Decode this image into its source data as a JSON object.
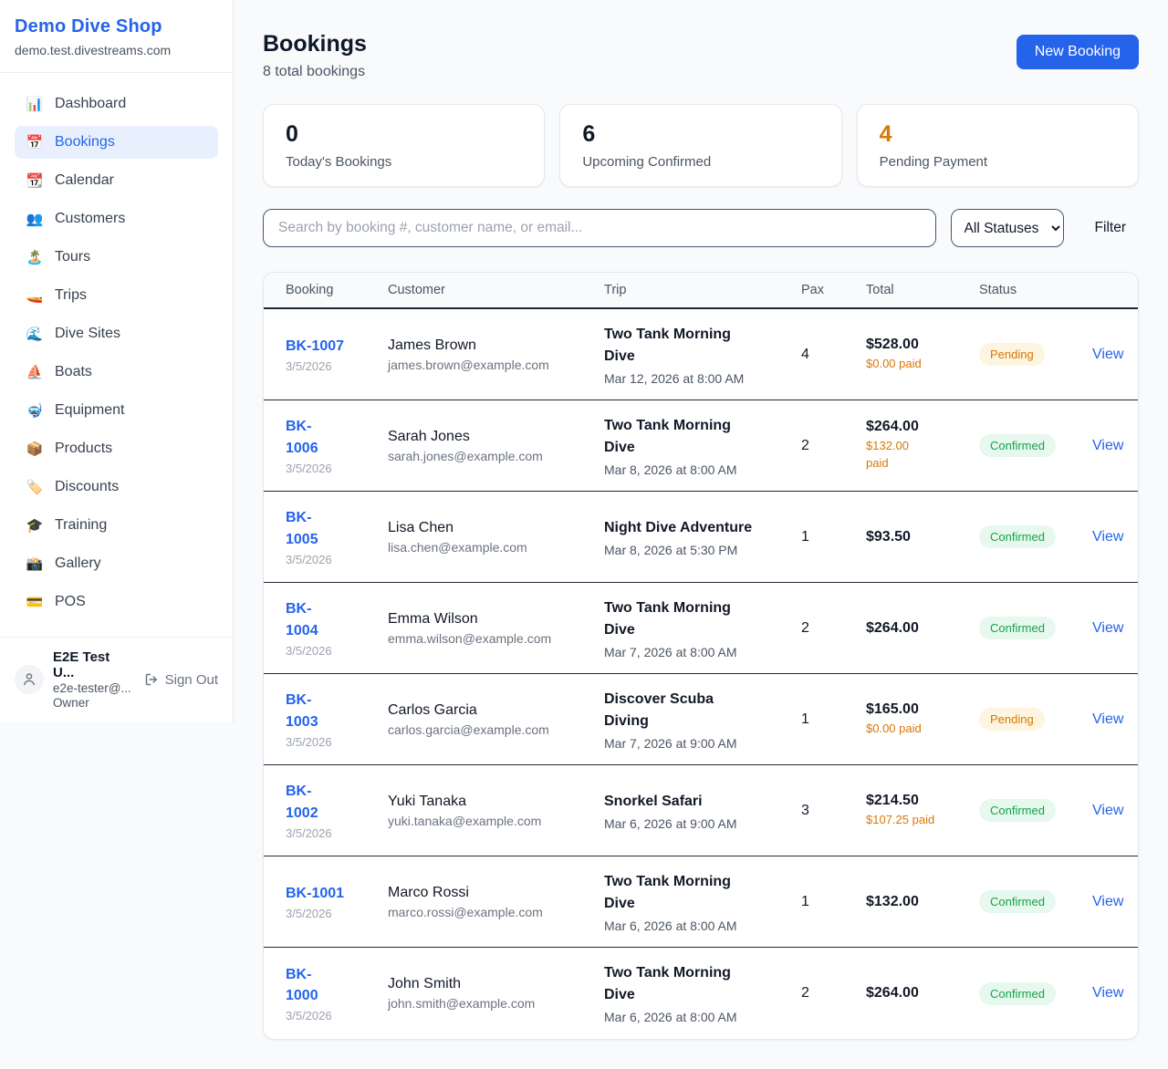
{
  "colors": {
    "accent_blue": "#2563eb",
    "stat_orange": "#d97706",
    "status": {
      "Pending": {
        "bg": "#fdf5e0",
        "text": "#d97706"
      },
      "Confirmed": {
        "bg": "#e7f8ee",
        "text": "#16a34a"
      }
    }
  },
  "sidebar": {
    "shop_name": "Demo Dive Shop",
    "shop_domain": "demo.test.divestreams.com",
    "items": [
      {
        "label": "Dashboard",
        "icon": "📊",
        "icon_name": "bar-chart-icon",
        "active": false
      },
      {
        "label": "Bookings",
        "icon": "📅",
        "icon_name": "calendar-icon",
        "active": true
      },
      {
        "label": "Calendar",
        "icon": "📆",
        "icon_name": "tear-off-calendar-icon",
        "active": false
      },
      {
        "label": "Customers",
        "icon": "👥",
        "icon_name": "people-icon",
        "active": false
      },
      {
        "label": "Tours",
        "icon": "🏝️",
        "icon_name": "island-icon",
        "active": false
      },
      {
        "label": "Trips",
        "icon": "🚤",
        "icon_name": "speedboat-icon",
        "active": false
      },
      {
        "label": "Dive Sites",
        "icon": "🌊",
        "icon_name": "wave-icon",
        "active": false
      },
      {
        "label": "Boats",
        "icon": "⛵",
        "icon_name": "sailboat-icon",
        "active": false
      },
      {
        "label": "Equipment",
        "icon": "🤿",
        "icon_name": "diving-mask-icon",
        "active": false
      },
      {
        "label": "Products",
        "icon": "📦",
        "icon_name": "package-icon",
        "active": false
      },
      {
        "label": "Discounts",
        "icon": "🏷️",
        "icon_name": "tag-icon",
        "active": false
      },
      {
        "label": "Training",
        "icon": "🎓",
        "icon_name": "graduation-cap-icon",
        "active": false
      },
      {
        "label": "Gallery",
        "icon": "📸",
        "icon_name": "camera-icon",
        "active": false
      },
      {
        "label": "POS",
        "icon": "💳",
        "icon_name": "credit-card-icon",
        "active": false
      }
    ],
    "user": {
      "name": "E2E Test U...",
      "email": "e2e-tester@...",
      "role": "Owner",
      "sign_out_label": "Sign Out"
    }
  },
  "header": {
    "title": "Bookings",
    "subtitle": "8 total bookings",
    "new_booking_label": "New Booking"
  },
  "stats": [
    {
      "value": "0",
      "label": "Today's Bookings",
      "color": "#111827"
    },
    {
      "value": "6",
      "label": "Upcoming Confirmed",
      "color": "#111827"
    },
    {
      "value": "4",
      "label": "Pending Payment",
      "color": "#d97706"
    }
  ],
  "filters": {
    "search_placeholder": "Search by booking #, customer name, or email...",
    "status_selected": "All Statuses",
    "filter_label": "Filter"
  },
  "table": {
    "columns": [
      "Booking",
      "Customer",
      "Trip",
      "Pax",
      "Total",
      "Status",
      ""
    ],
    "view_label": "View",
    "rows": [
      {
        "id": "BK-1007",
        "id_wrapped": false,
        "date": "3/5/2026",
        "customer": "James Brown",
        "email": "james.brown@example.com",
        "trip": "Two Tank Morning Dive",
        "trip_datetime": "Mar 12, 2026 at 8:00 AM",
        "pax": "4",
        "total": "$528.00",
        "paid": "$0.00 paid",
        "paid_wrapped": false,
        "status": "Pending"
      },
      {
        "id": "BK-1006",
        "id_wrapped": true,
        "date": "3/5/2026",
        "customer": "Sarah Jones",
        "email": "sarah.jones@example.com",
        "trip": "Two Tank Morning Dive",
        "trip_datetime": "Mar 8, 2026 at 8:00 AM",
        "pax": "2",
        "total": "$264.00",
        "paid": "$132.00 paid",
        "paid_wrapped": true,
        "status": "Confirmed"
      },
      {
        "id": "BK-1005",
        "id_wrapped": true,
        "date": "3/5/2026",
        "customer": "Lisa Chen",
        "email": "lisa.chen@example.com",
        "trip": "Night Dive Adventure",
        "trip_datetime": "Mar 8, 2026 at 5:30 PM",
        "pax": "1",
        "total": "$93.50",
        "paid": "",
        "paid_wrapped": false,
        "status": "Confirmed"
      },
      {
        "id": "BK-1004",
        "id_wrapped": true,
        "date": "3/5/2026",
        "customer": "Emma Wilson",
        "email": "emma.wilson@example.com",
        "trip": "Two Tank Morning Dive",
        "trip_datetime": "Mar 7, 2026 at 8:00 AM",
        "pax": "2",
        "total": "$264.00",
        "paid": "",
        "paid_wrapped": false,
        "status": "Confirmed"
      },
      {
        "id": "BK-1003",
        "id_wrapped": true,
        "date": "3/5/2026",
        "customer": "Carlos Garcia",
        "email": "carlos.garcia@example.com",
        "trip": "Discover Scuba Diving",
        "trip_datetime": "Mar 7, 2026 at 9:00 AM",
        "pax": "1",
        "total": "$165.00",
        "paid": "$0.00 paid",
        "paid_wrapped": false,
        "status": "Pending"
      },
      {
        "id": "BK-1002",
        "id_wrapped": true,
        "date": "3/5/2026",
        "customer": "Yuki Tanaka",
        "email": "yuki.tanaka@example.com",
        "trip": "Snorkel Safari",
        "trip_datetime": "Mar 6, 2026 at 9:00 AM",
        "pax": "3",
        "total": "$214.50",
        "paid": "$107.25 paid",
        "paid_wrapped": false,
        "status": "Confirmed"
      },
      {
        "id": "BK-1001",
        "id_wrapped": false,
        "date": "3/5/2026",
        "customer": "Marco Rossi",
        "email": "marco.rossi@example.com",
        "trip": "Two Tank Morning Dive",
        "trip_datetime": "Mar 6, 2026 at 8:00 AM",
        "pax": "1",
        "total": "$132.00",
        "paid": "",
        "paid_wrapped": false,
        "status": "Confirmed"
      },
      {
        "id": "BK-1000",
        "id_wrapped": true,
        "date": "3/5/2026",
        "customer": "John Smith",
        "email": "john.smith@example.com",
        "trip": "Two Tank Morning Dive",
        "trip_datetime": "Mar 6, 2026 at 8:00 AM",
        "pax": "2",
        "total": "$264.00",
        "paid": "",
        "paid_wrapped": false,
        "status": "Confirmed"
      }
    ]
  }
}
